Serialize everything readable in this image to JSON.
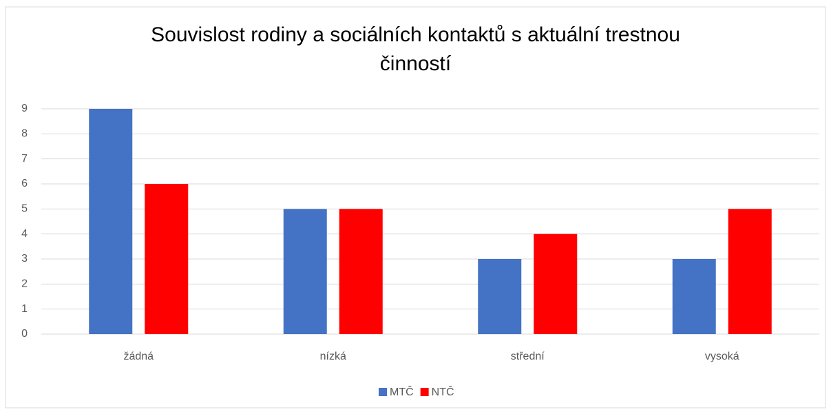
{
  "chart_data": {
    "type": "bar",
    "title": "Souvislost rodiny a sociálních kontaktů s aktuální trestnou činností",
    "categories": [
      "žádná",
      "nízká",
      "střední",
      "vysoká"
    ],
    "series": [
      {
        "name": "MTČ",
        "color": "#4472c4",
        "values": [
          9,
          5,
          3,
          3
        ]
      },
      {
        "name": "NTČ",
        "color": "#ff0000",
        "values": [
          6,
          5,
          4,
          5
        ]
      }
    ],
    "ylim": [
      0,
      9
    ],
    "yticks": [
      0,
      1,
      2,
      3,
      4,
      5,
      6,
      7,
      8,
      9
    ],
    "grid": true,
    "legend": "bottom"
  }
}
